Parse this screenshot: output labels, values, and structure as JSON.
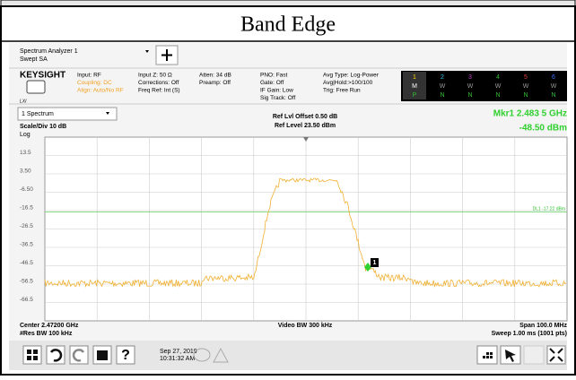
{
  "header": {
    "title": "Band Edge"
  },
  "window": {
    "app_name": "Spectrum Analyzer 1",
    "mode": "Swept SA",
    "brand": "KEYSIGHT",
    "lxi": "LXI"
  },
  "settings": {
    "col1": [
      "Input: RF",
      "Coupling: DC",
      "Align: Auto/No RF"
    ],
    "col2": [
      "Input Z: 50 Ω",
      "Corrections: Off",
      "Freq Ref: Int (S)"
    ],
    "col3": [
      "Atten: 34 dB",
      "Preamp: Off"
    ],
    "col4": [
      "PNO: Fast",
      "Gate: Off",
      "IF Gain: Low",
      "Sig Track: Off"
    ],
    "col5": [
      "Avg Type: Log-Power",
      "Avg|Hold:>100/100",
      "Trig: Free Run"
    ]
  },
  "traces": {
    "numbers": [
      "1",
      "2",
      "3",
      "4",
      "5",
      "6"
    ],
    "modes": [
      "M",
      "W",
      "W",
      "W",
      "W",
      "W"
    ],
    "detectors": [
      "P",
      "N",
      "N",
      "N",
      "N",
      "N"
    ]
  },
  "display": {
    "view": "1 Spectrum",
    "scale": "Scale/Div 10 dB",
    "log": "Log",
    "ref_offset": "Ref Lvl Offset 0.50 dB",
    "ref_level": "Ref Level 23.50 dBm",
    "marker_freq": "Mkr1  2.483 5 GHz",
    "marker_level": "-48.50 dBm",
    "display_line": "DL1 -17.22 dBm",
    "marker_id": "1",
    "y_labels": [
      "13.5",
      "3.50",
      "-6.50",
      "-16.5",
      "-26.5",
      "-36.5",
      "-46.5",
      "-56.5",
      "-66.5"
    ],
    "center": "Center 2.47200 GHz",
    "res_bw": "#Res BW 100 kHz",
    "video_bw": "Video BW 300 kHz",
    "span": "Span 100.0 MHz",
    "sweep": "Sweep 1.00 ms (1001 pts)"
  },
  "taskbar": {
    "date": "Sep 27, 2019",
    "time": "10:31:32 AM",
    "help": "?"
  }
}
